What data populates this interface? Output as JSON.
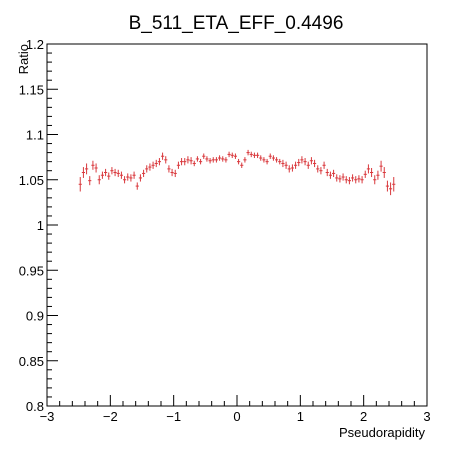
{
  "chart_data": {
    "type": "scatter",
    "title": "B_511_ETA_EFF_0.4496",
    "xlabel": "Pseudorapidity",
    "ylabel": "Ratio",
    "xlim": [
      -3,
      3
    ],
    "ylim": [
      0.8,
      1.2
    ],
    "grid": false,
    "marker_color": "#d9383c",
    "x_ticks": [
      -3,
      -2,
      -1,
      0,
      1,
      2,
      3
    ],
    "x_tick_labels": [
      "−3",
      "−2",
      "−1",
      "0",
      "1",
      "2",
      "3"
    ],
    "y_ticks": [
      0.8,
      0.85,
      0.9,
      0.95,
      1,
      1.05,
      1.1,
      1.15,
      1.2
    ],
    "y_tick_labels": [
      "0.8",
      "0.85",
      "0.9",
      "0.95",
      "1",
      "1.05",
      "1.1",
      "1.15",
      "1.2"
    ],
    "series": [
      {
        "x_halfwidth": 0.025,
        "x": [
          -2.475,
          -2.425,
          -2.375,
          -2.325,
          -2.275,
          -2.225,
          -2.175,
          -2.125,
          -2.075,
          -2.025,
          -1.975,
          -1.925,
          -1.875,
          -1.825,
          -1.775,
          -1.725,
          -1.675,
          -1.625,
          -1.575,
          -1.525,
          -1.475,
          -1.425,
          -1.375,
          -1.325,
          -1.275,
          -1.225,
          -1.175,
          -1.125,
          -1.075,
          -1.025,
          -0.975,
          -0.925,
          -0.875,
          -0.825,
          -0.775,
          -0.725,
          -0.675,
          -0.625,
          -0.575,
          -0.525,
          -0.475,
          -0.425,
          -0.375,
          -0.325,
          -0.275,
          -0.225,
          -0.175,
          -0.125,
          -0.075,
          -0.025,
          0.025,
          0.075,
          0.125,
          0.175,
          0.225,
          0.275,
          0.325,
          0.375,
          0.425,
          0.475,
          0.525,
          0.575,
          0.625,
          0.675,
          0.725,
          0.775,
          0.825,
          0.875,
          0.925,
          0.975,
          1.025,
          1.075,
          1.125,
          1.175,
          1.225,
          1.275,
          1.325,
          1.375,
          1.425,
          1.475,
          1.525,
          1.575,
          1.625,
          1.675,
          1.725,
          1.775,
          1.825,
          1.875,
          1.925,
          1.975,
          2.025,
          2.075,
          2.125,
          2.175,
          2.225,
          2.275,
          2.325,
          2.375,
          2.425,
          2.475
        ],
        "y": [
          1.045,
          1.058,
          1.062,
          1.049,
          1.066,
          1.063,
          1.05,
          1.055,
          1.058,
          1.054,
          1.06,
          1.058,
          1.057,
          1.055,
          1.05,
          1.053,
          1.052,
          1.055,
          1.043,
          1.052,
          1.057,
          1.062,
          1.064,
          1.066,
          1.068,
          1.07,
          1.076,
          1.072,
          1.062,
          1.058,
          1.057,
          1.066,
          1.07,
          1.07,
          1.072,
          1.071,
          1.068,
          1.073,
          1.07,
          1.076,
          1.073,
          1.071,
          1.072,
          1.072,
          1.074,
          1.073,
          1.072,
          1.078,
          1.077,
          1.076,
          1.07,
          1.066,
          1.072,
          1.08,
          1.078,
          1.077,
          1.077,
          1.074,
          1.072,
          1.07,
          1.076,
          1.074,
          1.072,
          1.07,
          1.068,
          1.066,
          1.062,
          1.063,
          1.066,
          1.069,
          1.072,
          1.07,
          1.066,
          1.071,
          1.068,
          1.062,
          1.06,
          1.066,
          1.058,
          1.055,
          1.057,
          1.052,
          1.051,
          1.053,
          1.05,
          1.049,
          1.052,
          1.05,
          1.051,
          1.05,
          1.056,
          1.062,
          1.058,
          1.05,
          1.055,
          1.065,
          1.058,
          1.043,
          1.04,
          1.045
        ],
        "y_err": [
          0.008,
          0.006,
          0.006,
          0.005,
          0.005,
          0.005,
          0.005,
          0.004,
          0.004,
          0.004,
          0.004,
          0.004,
          0.004,
          0.004,
          0.004,
          0.004,
          0.004,
          0.004,
          0.004,
          0.004,
          0.004,
          0.004,
          0.004,
          0.004,
          0.004,
          0.004,
          0.004,
          0.004,
          0.004,
          0.004,
          0.004,
          0.004,
          0.004,
          0.004,
          0.004,
          0.004,
          0.003,
          0.003,
          0.003,
          0.003,
          0.003,
          0.003,
          0.003,
          0.003,
          0.003,
          0.003,
          0.003,
          0.003,
          0.003,
          0.003,
          0.003,
          0.003,
          0.003,
          0.003,
          0.003,
          0.003,
          0.003,
          0.003,
          0.003,
          0.003,
          0.003,
          0.003,
          0.003,
          0.003,
          0.004,
          0.004,
          0.004,
          0.004,
          0.004,
          0.004,
          0.004,
          0.004,
          0.004,
          0.004,
          0.004,
          0.004,
          0.004,
          0.004,
          0.004,
          0.004,
          0.004,
          0.004,
          0.004,
          0.004,
          0.004,
          0.004,
          0.004,
          0.004,
          0.004,
          0.004,
          0.004,
          0.005,
          0.005,
          0.005,
          0.005,
          0.006,
          0.006,
          0.006,
          0.007,
          0.008
        ]
      }
    ]
  }
}
